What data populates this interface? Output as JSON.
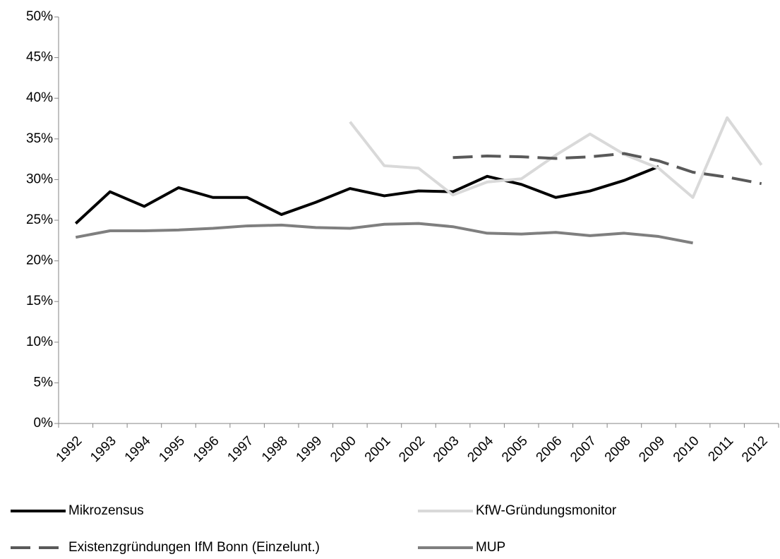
{
  "chart_data": {
    "type": "line",
    "categories": [
      "1992",
      "1993",
      "1994",
      "1995",
      "1996",
      "1997",
      "1998",
      "1999",
      "2000",
      "2001",
      "2002",
      "2003",
      "2004",
      "2005",
      "2006",
      "2007",
      "2008",
      "2009",
      "2010",
      "2011",
      "2012"
    ],
    "series": [
      {
        "name": "Mikrozensus",
        "color": "#000000",
        "dashed": false,
        "values": [
          24.6,
          28.5,
          26.7,
          29.0,
          27.8,
          27.8,
          25.7,
          27.2,
          28.9,
          28.0,
          28.6,
          28.5,
          30.4,
          29.4,
          27.8,
          28.6,
          29.9,
          31.6,
          null,
          null,
          null
        ]
      },
      {
        "name": "KfW-Gründungsmonitor",
        "color": "#d9d9d9",
        "dashed": false,
        "values": [
          null,
          null,
          null,
          null,
          null,
          null,
          null,
          null,
          37.1,
          31.7,
          31.4,
          28.1,
          29.7,
          30.1,
          33.0,
          35.6,
          33.1,
          31.4,
          27.8,
          37.6,
          31.8
        ]
      },
      {
        "name": "Existenzgründungen IfM Bonn (Einzelunt.)",
        "color": "#595959",
        "dashed": true,
        "values": [
          null,
          null,
          null,
          null,
          null,
          null,
          null,
          null,
          null,
          null,
          null,
          32.7,
          32.9,
          32.8,
          32.6,
          32.8,
          33.2,
          32.3,
          30.9,
          30.3,
          29.5
        ]
      },
      {
        "name": "MUP",
        "color": "#7f7f7f",
        "dashed": false,
        "values": [
          22.9,
          23.7,
          23.7,
          23.8,
          24.0,
          24.3,
          24.4,
          24.1,
          24.0,
          24.5,
          24.6,
          24.2,
          23.4,
          23.3,
          23.5,
          23.1,
          23.4,
          23.0,
          22.2,
          null,
          null
        ]
      }
    ],
    "ylim": [
      0,
      50
    ],
    "yticks": [
      {
        "value": 0,
        "label": "0%"
      },
      {
        "value": 5,
        "label": "5%"
      },
      {
        "value": 10,
        "label": "10%"
      },
      {
        "value": 15,
        "label": "15%"
      },
      {
        "value": 20,
        "label": "20%"
      },
      {
        "value": 25,
        "label": "25%"
      },
      {
        "value": 30,
        "label": "30%"
      },
      {
        "value": 35,
        "label": "35%"
      },
      {
        "value": 40,
        "label": "40%"
      },
      {
        "value": 45,
        "label": "45%"
      },
      {
        "value": 50,
        "label": "50%"
      }
    ],
    "grid": false
  }
}
